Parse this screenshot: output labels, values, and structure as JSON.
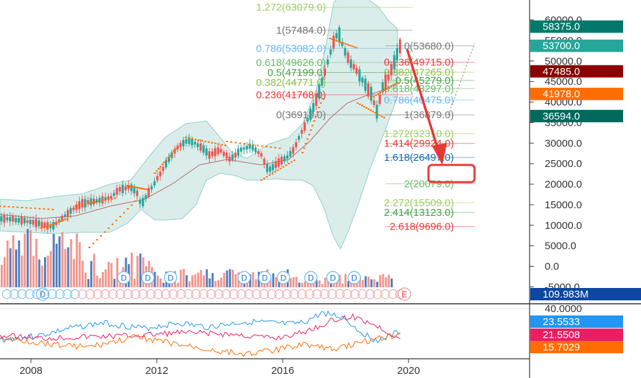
{
  "chart_data": {
    "type": "candlestick",
    "x_ticks": [
      "2008",
      "2012",
      "2016",
      "2020"
    ],
    "y_ticks": [
      "60000.0",
      "55000.0",
      "50000.0",
      "45000.0",
      "40000.0",
      "35000.0",
      "30000.0",
      "25000.0",
      "20000.0",
      "15000.0",
      "10000.0",
      "5000.0",
      "0.0",
      "-5000.0"
    ],
    "price_badges": [
      {
        "label": "58375.0",
        "value": 58375,
        "color": "#00796b"
      },
      {
        "label": "53700.0",
        "value": 53700,
        "color": "#26a69a"
      },
      {
        "label": "47485.0",
        "value": 47485,
        "color": "#8b0000"
      },
      {
        "label": "41978.0",
        "value": 41978,
        "color": "#ff6d00"
      },
      {
        "label": "36594.0",
        "value": 36594,
        "color": "#00695c"
      }
    ],
    "volume_badge": {
      "label": "109.983M",
      "color": "#0d47a1"
    },
    "fib_levels": [
      {
        "label": "1.272(63079.0)",
        "value": 63079,
        "color": "#9ccc65"
      },
      {
        "label": "1(57484.0)",
        "value": 57484,
        "color": "#777777"
      },
      {
        "label": "0.786(53082.0)",
        "value": 53082,
        "color": "#64b5f6"
      },
      {
        "label": "0.618(49626.0)",
        "value": 49626,
        "color": "#66bb6a"
      },
      {
        "label": "0.5(47199.0)",
        "value": 47199,
        "color": "#43a047"
      },
      {
        "label": "0.382(44771.0)",
        "value": 44771,
        "color": "#8bc34a"
      },
      {
        "label": "0.236(41768.0)",
        "value": 41768,
        "color": "#e53935"
      },
      {
        "label": "0(36913.0)",
        "value": 36913,
        "color": "#777777"
      }
    ],
    "fib_ext_levels": [
      {
        "label": "0(53680.0)",
        "value": 53680,
        "color": "#777777"
      },
      {
        "label": "0.236(49715.0)",
        "value": 49715,
        "color": "#e53935"
      },
      {
        "label": "0.382(47265.0)",
        "value": 47265,
        "color": "#8bc34a"
      },
      {
        "label": "0.5(45279.0)",
        "value": 45279,
        "color": "#43a047"
      },
      {
        "label": "0.618(43297.0)",
        "value": 43297,
        "color": "#66bb6a"
      },
      {
        "label": "0.786(40475.0)",
        "value": 40475,
        "color": "#64b5f6"
      },
      {
        "label": "1(36879.0)",
        "value": 36879,
        "color": "#777777"
      },
      {
        "label": "1.272(32310.0)",
        "value": 32310,
        "color": "#9ccc65"
      },
      {
        "label": "1.414(29924.0)",
        "value": 29924,
        "color": "#e53935"
      },
      {
        "label": "1.618(26497.0)",
        "value": 26497,
        "color": "#1565c0"
      },
      {
        "label": "2(20079.0)",
        "value": 20079,
        "color": "#66bb6a"
      },
      {
        "label": "2.272(15509.0)",
        "value": 15509,
        "color": "#9ccc65"
      },
      {
        "label": "2.414(13123.0)",
        "value": 13123,
        "color": "#43a047"
      },
      {
        "label": "2.618(9696.0)",
        "value": 9696,
        "color": "#e53935"
      }
    ],
    "oscillator": {
      "y_ticks": [
        "40.0000"
      ],
      "badges": [
        {
          "label": "23.5533",
          "color": "#2196f3"
        },
        {
          "label": "21.5508",
          "color": "#e91e63"
        },
        {
          "label": "15.7029",
          "color": "#ff6d00"
        }
      ]
    },
    "event_markers": [
      "D",
      "D",
      "D",
      "D",
      "D",
      "D",
      "D",
      "D",
      "D",
      "D",
      "D",
      "E"
    ],
    "colors": {
      "up": "#26a69a",
      "down": "#ef5350",
      "volume_down": "#f28b82",
      "volume_up": "#3f6fb5",
      "band_fill": "#d8ece9",
      "band_line": "#80cbc4",
      "sar": "#ff6d00",
      "arrow": "#e53935"
    }
  }
}
